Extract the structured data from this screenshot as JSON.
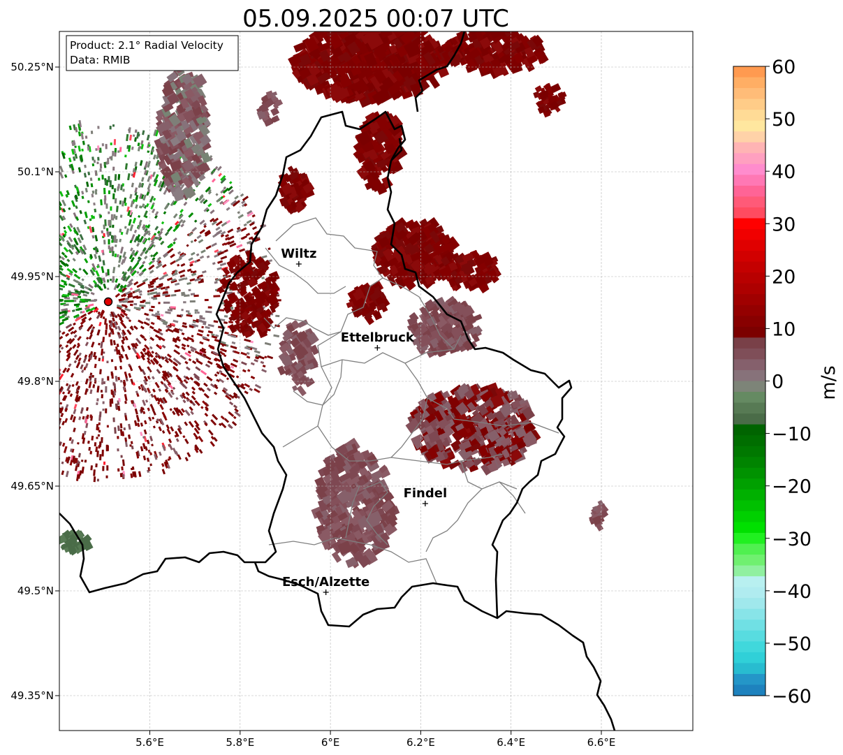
{
  "title": "05.09.2025 00:07 UTC",
  "info_box": {
    "line1": "Product: 2.1° Radial Velocity",
    "line2": "Data: RMIB"
  },
  "map": {
    "lon_range": [
      5.4,
      6.8
    ],
    "lat_range": [
      49.3,
      50.3
    ],
    "lon_ticks": [
      "5.6°E",
      "5.8°E",
      "6°E",
      "6.2°E",
      "6.4°E",
      "6.6°E"
    ],
    "lat_ticks": [
      "50.25°N",
      "50.1°N",
      "49.95°N",
      "49.8°N",
      "49.65°N",
      "49.5°N",
      "49.35°N"
    ],
    "grid": "dashed light gray",
    "radar_site": {
      "lon": 5.505,
      "lat": 49.915,
      "color": "#e00000"
    },
    "cities": [
      {
        "name": "Wiltz",
        "lon": 5.93,
        "lat": 49.968
      },
      {
        "name": "Ettelbruck",
        "lon": 6.104,
        "lat": 49.848
      },
      {
        "name": "Findel",
        "lon": 6.21,
        "lat": 49.625
      },
      {
        "name": "Esch/Alzette",
        "lon": 5.99,
        "lat": 49.498
      }
    ]
  },
  "colorbar": {
    "label": "m/s",
    "ticks": [
      "60",
      "50",
      "40",
      "30",
      "20",
      "10",
      "0",
      "−10",
      "−20",
      "−30",
      "−40",
      "−50",
      "−60"
    ],
    "range": [
      -60,
      60
    ],
    "colors_top_to_bottom": [
      "#ff9a50",
      "#ffae64",
      "#ffbc78",
      "#ffcc88",
      "#ffdb96",
      "#ffe79f",
      "#ffd2a8",
      "#ffb4b4",
      "#ffa0c0",
      "#ff8ccd",
      "#ff78b4",
      "#ff6496",
      "#ff5a78",
      "#ff4b60",
      "#ff0000",
      "#f00000",
      "#e00000",
      "#d20000",
      "#c40000",
      "#b80000",
      "#ad0000",
      "#a00000",
      "#940000",
      "#880000",
      "#7c0000",
      "#794048",
      "#7f4e58",
      "#85606c",
      "#87727a",
      "#7d8478",
      "#658a62",
      "#577a54",
      "#4a6c48",
      "#006400",
      "#006e00",
      "#007800",
      "#008400",
      "#009200",
      "#00a000",
      "#00b000",
      "#00c000",
      "#00d000",
      "#00e000",
      "#20f020",
      "#50f050",
      "#70f070",
      "#90f0a0",
      "#b8f0f0",
      "#b0ecf0",
      "#a0e8ec",
      "#88e4e8",
      "#70e0e4",
      "#58dce0",
      "#40d8dc",
      "#30d0d8",
      "#28bcd0",
      "#2496c8",
      "#1e82be"
    ]
  }
}
